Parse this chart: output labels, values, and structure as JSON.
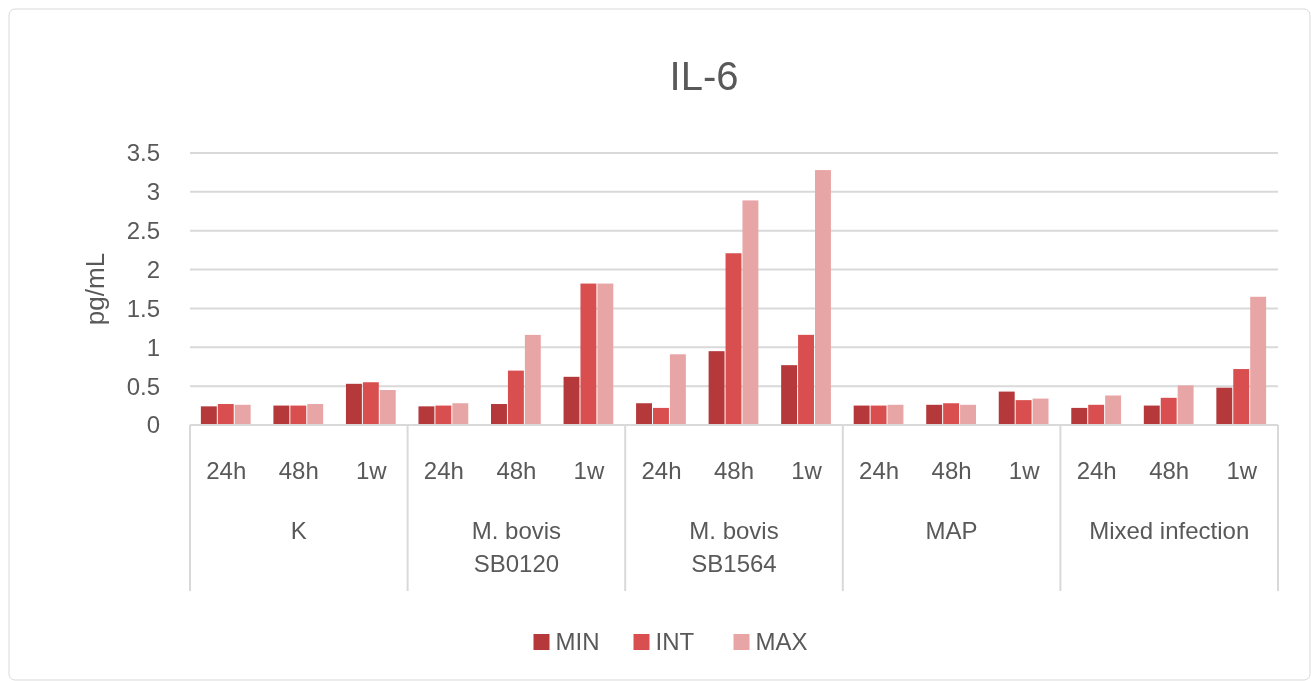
{
  "chart_data": {
    "type": "bar",
    "title": "IL-6",
    "ylabel": "pg/mL",
    "categories": [
      "24h",
      "48h",
      "1w",
      "24h",
      "48h",
      "1w",
      "24h",
      "48h",
      "1w",
      "24h",
      "48h",
      "1w",
      "24h",
      "48h",
      "1w"
    ],
    "annotations": [
      "K",
      "M. bovis\nSB0120",
      "M. bovis\nSB1564",
      "MAP",
      "Mixed infection"
    ],
    "series": [
      {
        "name": "MIN",
        "color": "#b5393a",
        "values": [
          0.24,
          0.25,
          0.53,
          0.24,
          0.27,
          0.62,
          0.28,
          0.95,
          0.77,
          0.25,
          0.26,
          0.43,
          0.22,
          0.25,
          0.48
        ]
      },
      {
        "name": "INT",
        "color": "#d94f4f",
        "values": [
          0.27,
          0.25,
          0.55,
          0.25,
          0.7,
          1.82,
          0.22,
          2.21,
          1.16,
          0.25,
          0.28,
          0.32,
          0.26,
          0.35,
          0.72
        ]
      },
      {
        "name": "MAX",
        "color": "#e8a5a6",
        "values": [
          0.26,
          0.27,
          0.45,
          0.28,
          1.16,
          1.82,
          0.91,
          2.89,
          3.28,
          0.26,
          0.26,
          0.34,
          0.38,
          0.51,
          1.65
        ]
      }
    ],
    "ylim": [
      0,
      3.5
    ],
    "yticks": [
      0,
      0.5,
      1,
      1.5,
      2,
      2.5,
      3,
      3.5
    ],
    "grid": "y",
    "legend": "bottom"
  }
}
